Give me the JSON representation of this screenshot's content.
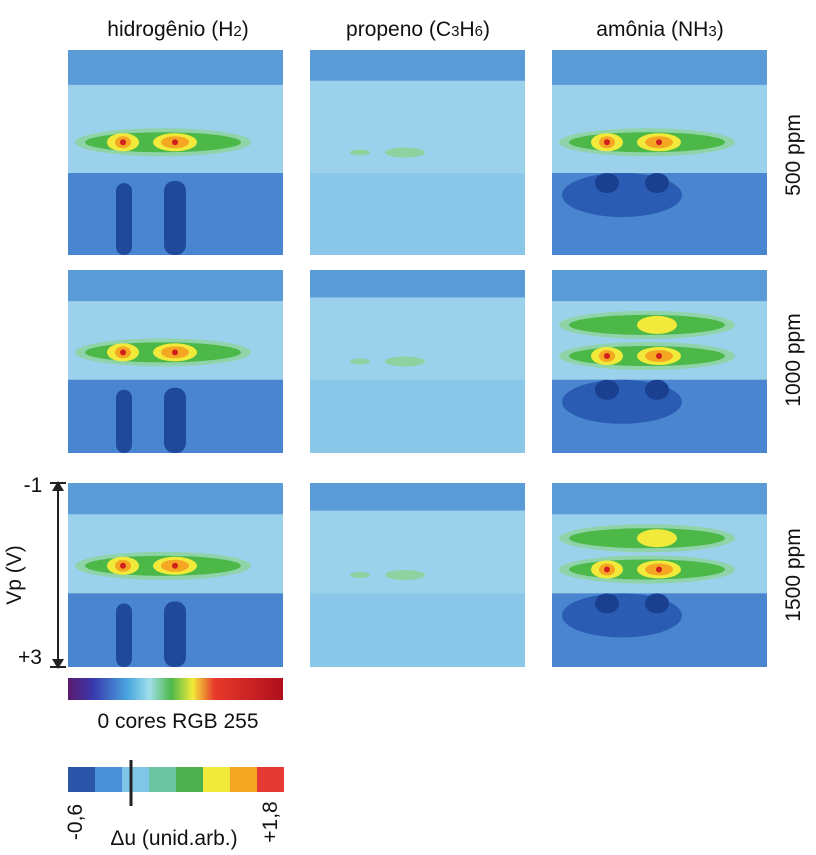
{
  "columns": [
    "hidrogênio (H2)",
    "propeno (C3H6)",
    "amônia (NH3)"
  ],
  "rows": [
    "500 ppm",
    "1000 ppm",
    "1500 ppm"
  ],
  "vp_axis": {
    "label": "Vp (V)",
    "top": "-1",
    "bottom": "+3"
  },
  "rgb_scale": {
    "label": "0 cores RGB 255"
  },
  "du_scale": {
    "min": "-0,6",
    "max": "+1,8",
    "label": "Δu (unid.arb.)"
  }
}
